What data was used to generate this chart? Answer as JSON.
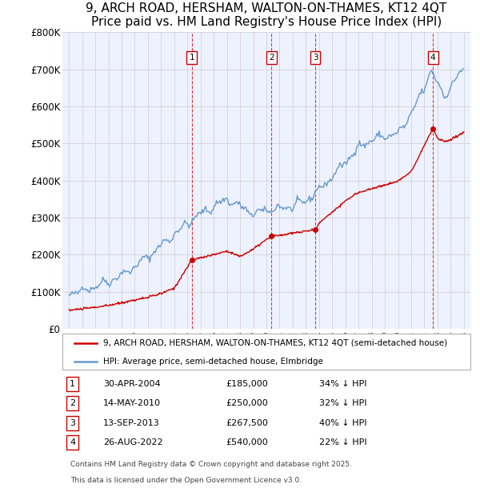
{
  "title1": "9, ARCH ROAD, HERSHAM, WALTON-ON-THAMES, KT12 4QT",
  "title2": "Price paid vs. HM Land Registry's House Price Index (HPI)",
  "ylim": [
    0,
    800000
  ],
  "yticks": [
    0,
    100000,
    200000,
    300000,
    400000,
    500000,
    600000,
    700000,
    800000
  ],
  "ytick_labels": [
    "£0",
    "£100K",
    "£200K",
    "£300K",
    "£400K",
    "£500K",
    "£600K",
    "£700K",
    "£800K"
  ],
  "xlim_start": 1994.5,
  "xlim_end": 2025.5,
  "sales": [
    {
      "num": 1,
      "date": "30-APR-2004",
      "year": 2004.33,
      "price": 185000,
      "pct": "34%",
      "direction": "↓"
    },
    {
      "num": 2,
      "date": "14-MAY-2010",
      "year": 2010.37,
      "price": 250000,
      "pct": "32%",
      "direction": "↓"
    },
    {
      "num": 3,
      "date": "13-SEP-2013",
      "year": 2013.71,
      "price": 267500,
      "pct": "40%",
      "direction": "↓"
    },
    {
      "num": 4,
      "date": "26-AUG-2022",
      "year": 2022.65,
      "price": 540000,
      "pct": "22%",
      "direction": "↓"
    }
  ],
  "legend_line1": "9, ARCH ROAD, HERSHAM, WALTON-ON-THAMES, KT12 4QT (semi-detached house)",
  "legend_line2": "HPI: Average price, semi-detached house, Elmbridge",
  "footer1": "Contains HM Land Registry data © Crown copyright and database right 2025.",
  "footer2": "This data is licensed under the Open Government Licence v3.0.",
  "bg_color": "#eef2ff",
  "red_color": "#cc0000",
  "blue_color": "#6699cc",
  "grid_color": "#cccccc",
  "title_fontsize": 11,
  "subtitle_fontsize": 10
}
